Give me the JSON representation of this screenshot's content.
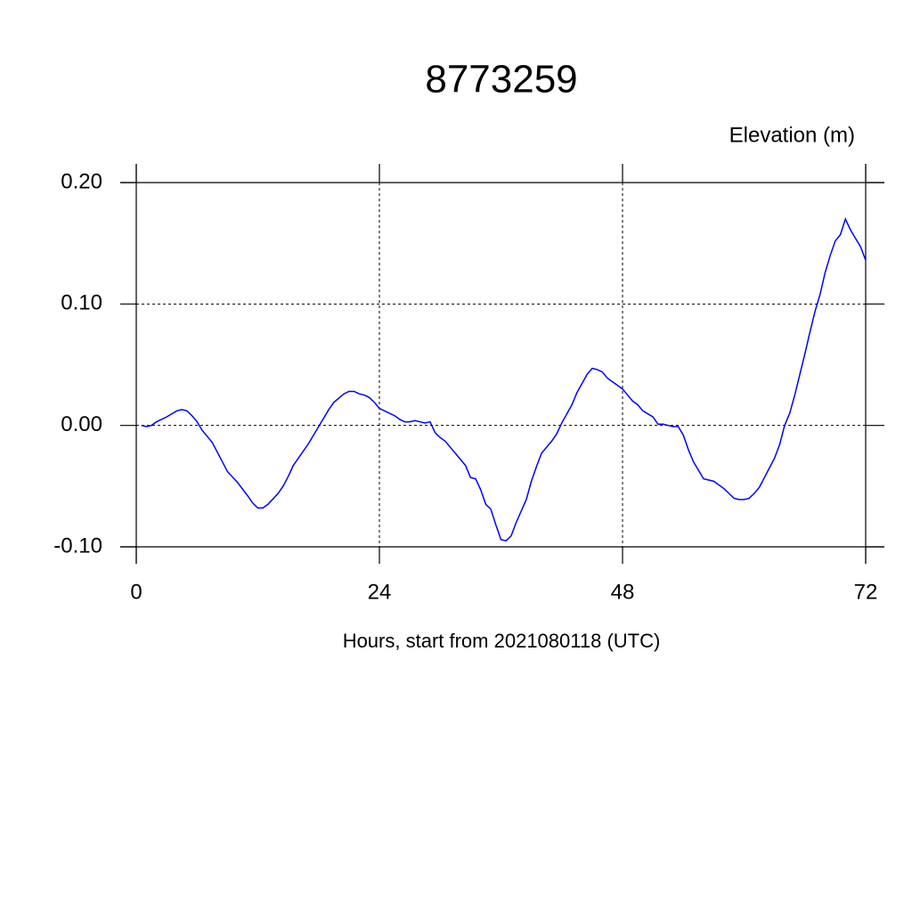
{
  "chart_data": {
    "type": "line",
    "title": "8773259",
    "y_label": "Elevation (m)",
    "x_label": "Hours, start from 2021080118 (UTC)",
    "xlim": [
      0,
      72
    ],
    "xticks": [
      0,
      24,
      48,
      72
    ],
    "ylim": [
      -0.1,
      0.2
    ],
    "yticks": [
      {
        "value": -0.1,
        "label": "-0.10"
      },
      {
        "value": 0,
        "label": "0.00"
      },
      {
        "value": 0.1,
        "label": "0.10"
      },
      {
        "value": 0.2,
        "label": "0.20"
      }
    ],
    "grid": true,
    "x": [
      0.5,
      1,
      1.5,
      2,
      3,
      4,
      4.5,
      5,
      5.5,
      6,
      6.5,
      7.5,
      8,
      8.5,
      9,
      10,
      11,
      11.5,
      12,
      12.5,
      13,
      14,
      14.5,
      15,
      15.5,
      16,
      17,
      18,
      19,
      19.5,
      20.5,
      21,
      21.5,
      22,
      22.5,
      23,
      23.5,
      24,
      24.5,
      25.5,
      26,
      26.5,
      27,
      27.5,
      28,
      28.5,
      29,
      29.5,
      30,
      30.5,
      31.5,
      32.5,
      33,
      33.5,
      34,
      34.5,
      35,
      35.5,
      36,
      36.5,
      37,
      37.5,
      38.5,
      39,
      39.5,
      40,
      41,
      41.5,
      42,
      43,
      43.5,
      44.5,
      45,
      45.5,
      46,
      46.5,
      47,
      48,
      48.5,
      49,
      49.5,
      50,
      51,
      51.5,
      52,
      52.5,
      53,
      53.5,
      54,
      54.5,
      55,
      56,
      57,
      58,
      58.5,
      59,
      59.5,
      60,
      60.5,
      61,
      61.5,
      62,
      62.5,
      63,
      63.5,
      64,
      64.5,
      65,
      65.5,
      66,
      66.5,
      67,
      67.5,
      68,
      68.5,
      69,
      69.5,
      70,
      70.5,
      71,
      71.5,
      72
    ],
    "series": [
      {
        "color": "#0000ff",
        "values": [
          0.0,
          -0.001,
          0.0,
          0.003,
          0.007,
          0.012,
          0.013,
          0.012,
          0.008,
          0.003,
          -0.004,
          -0.014,
          -0.022,
          -0.03,
          -0.038,
          -0.047,
          -0.058,
          -0.064,
          -0.068,
          -0.068,
          -0.065,
          -0.056,
          -0.05,
          -0.042,
          -0.033,
          -0.027,
          -0.015,
          -0.001,
          0.013,
          0.019,
          0.026,
          0.028,
          0.028,
          0.026,
          0.025,
          0.023,
          0.019,
          0.014,
          0.012,
          0.008,
          0.005,
          0.003,
          0.003,
          0.004,
          0.003,
          0.002,
          0.003,
          -0.006,
          -0.01,
          -0.013,
          -0.023,
          -0.033,
          -0.043,
          -0.044,
          -0.053,
          -0.065,
          -0.069,
          -0.082,
          -0.094,
          -0.095,
          -0.091,
          -0.08,
          -0.061,
          -0.046,
          -0.034,
          -0.023,
          -0.013,
          -0.007,
          0.002,
          0.017,
          0.027,
          0.042,
          0.047,
          0.046,
          0.044,
          0.039,
          0.036,
          0.03,
          0.025,
          0.02,
          0.017,
          0.012,
          0.007,
          0.001,
          0.001,
          0.0,
          -0.001,
          -0.001,
          -0.008,
          -0.02,
          -0.03,
          -0.044,
          -0.046,
          -0.052,
          -0.056,
          -0.06,
          -0.061,
          -0.061,
          -0.06,
          -0.056,
          -0.051,
          -0.043,
          -0.035,
          -0.027,
          -0.016,
          0.0,
          0.01,
          0.025,
          0.042,
          0.059,
          0.077,
          0.094,
          0.108,
          0.126,
          0.14,
          0.152,
          0.157,
          0.17,
          0.161,
          0.154,
          0.147,
          0.136
        ]
      }
    ]
  }
}
